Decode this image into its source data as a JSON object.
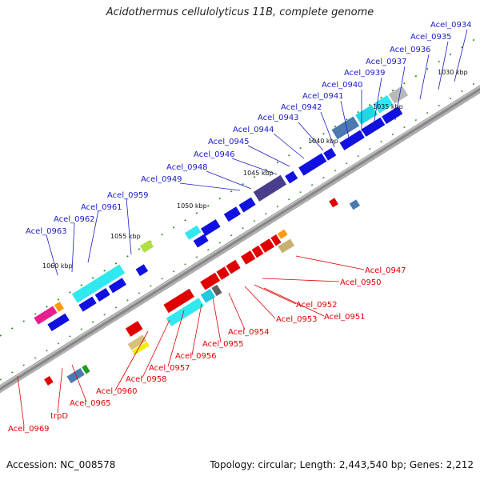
{
  "title": "Acidothermus cellulolyticus 11B, complete genome",
  "footer": {
    "accession": "Accession: NC_008578",
    "summary": "Topology: circular; Length: 2,443,540 bp; Genes: 2,212"
  },
  "colors": {
    "forward_label": "#1c1cc8",
    "reverse_label": "#e00000"
  },
  "kbp_labels": [
    "1030 kbp",
    "1035 kbp",
    "1040 kbp",
    "1045 kbp",
    "1050 kbp",
    "1055 kbp",
    "1060 kbp"
  ],
  "forward_genes": [
    "Acel_0934",
    "Acel_0935",
    "Acel_0936",
    "Acel_0937",
    "Acel_0939",
    "Acel_0940",
    "Acel_0941",
    "Acel_0942",
    "Acel_0943",
    "Acel_0944",
    "Acel_0945",
    "Acel_0946",
    "Acel_0948",
    "Acel_0949",
    "Acel_0959",
    "Acel_0961",
    "Acel_0962",
    "Acel_0963"
  ],
  "reverse_genes": [
    "Acel_0947",
    "Acel_0950",
    "Acel_0952",
    "Acel_0951",
    "Acel_0953",
    "Acel_0954",
    "Acel_0955",
    "Acel_0956",
    "Acel_0957",
    "Acel_0958",
    "Acel_0960",
    "Acel_0965",
    "trpD",
    "Acel_0969"
  ]
}
